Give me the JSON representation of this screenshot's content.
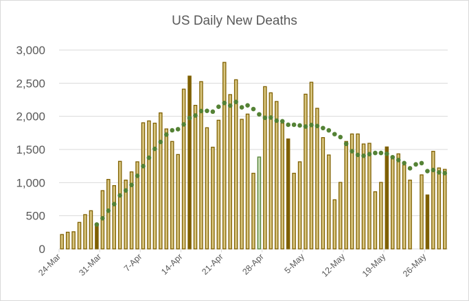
{
  "chart_data": {
    "type": "bar",
    "title": "US Daily New Deaths",
    "xlabel": "",
    "ylabel": "",
    "ylim": [
      0,
      3000
    ],
    "yticks": [
      "0",
      "500",
      "1,000",
      "1,500",
      "2,000",
      "2,500",
      "3,000"
    ],
    "ytick_values": [
      0,
      500,
      1000,
      1500,
      2000,
      2500,
      3000
    ],
    "grid": true,
    "legend": "none",
    "start_date": "24-Mar",
    "xtick_labels": [
      "24-Mar",
      "31-Mar",
      "7-Apr",
      "14-Apr",
      "21-Apr",
      "28-Apr",
      "5-May",
      "12-May",
      "19-May",
      "26-May"
    ],
    "xtick_every_days": 7,
    "series": [
      {
        "name": "Daily new deaths",
        "values": [
          217,
          252,
          259,
          400,
          517,
          576,
          352,
          879,
          1048,
          955,
          1321,
          1038,
          1162,
          1314,
          1903,
          1931,
          1897,
          2052,
          1810,
          1621,
          1424,
          2410,
          2607,
          2166,
          2524,
          1828,
          1534,
          1941,
          2814,
          2328,
          2552,
          1955,
          2034,
          1141,
          1386,
          2448,
          2355,
          2224,
          1897,
          1659,
          1141,
          1314,
          2334,
          2514,
          2121,
          1679,
          1417,
          741,
          1003,
          1621,
          1734,
          1734,
          1583,
          1593,
          862,
          1003,
          1538,
          1372,
          1434,
          1266,
          1038,
          null,
          1117,
          814,
          1472,
          1221,
          1200
        ],
        "highlight_dark_indices": [
          6,
          22,
          39,
          56,
          63
        ],
        "highlight_green_indices": [
          34
        ]
      },
      {
        "name": "7-day moving average",
        "type": "dotted-line",
        "window": 7
      }
    ],
    "colors": {
      "bar_fill": "#d8c57f",
      "bar_border": "#7f6000",
      "bar_dark": "#7f6000",
      "bar_green_border": "#548235",
      "bar_green_fill": "#c5d9b0",
      "trend": "#548235",
      "grid": "#d9d9d9",
      "text": "#595959"
    }
  }
}
